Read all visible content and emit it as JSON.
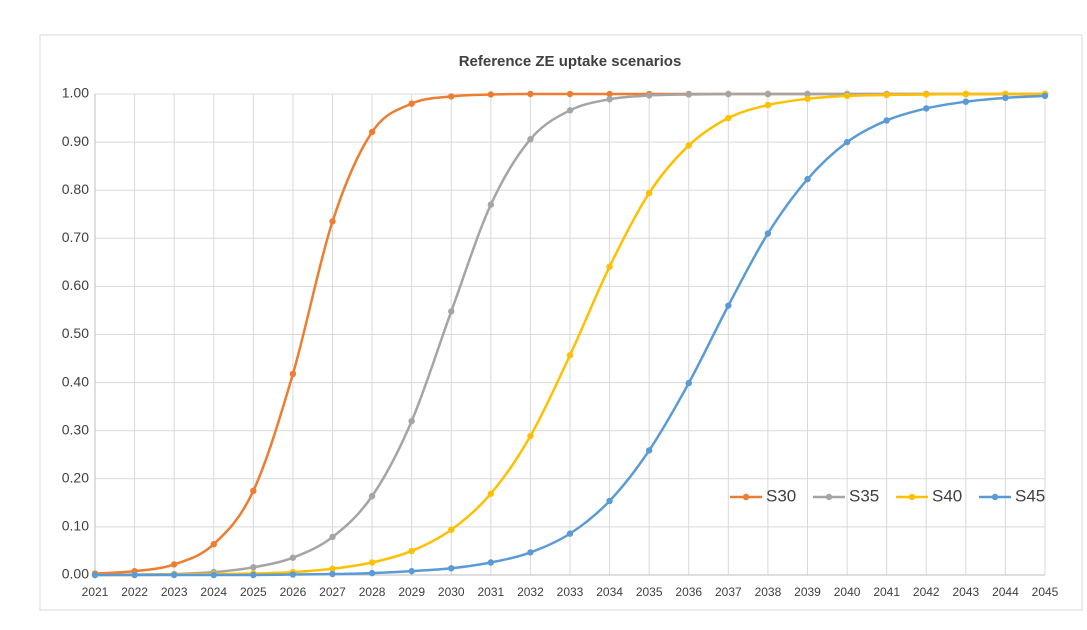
{
  "chart_data": {
    "type": "line",
    "title": "Reference ZE uptake scenarios",
    "categories": [
      "2021",
      "2022",
      "2023",
      "2024",
      "2025",
      "2026",
      "2027",
      "2028",
      "2029",
      "2030",
      "2031",
      "2032",
      "2033",
      "2034",
      "2035",
      "2036",
      "2037",
      "2038",
      "2039",
      "2040",
      "2041",
      "2042",
      "2043",
      "2044",
      "2045"
    ],
    "series": [
      {
        "name": "S30",
        "color": "#ed7d31",
        "values": [
          0.003,
          0.008,
          0.022,
          0.064,
          0.175,
          0.418,
          0.735,
          0.921,
          0.98,
          0.995,
          0.999,
          1,
          1,
          1,
          1,
          1,
          1,
          1,
          1,
          1,
          1,
          1,
          1,
          1,
          1
        ]
      },
      {
        "name": "S35",
        "color": "#a5a5a5",
        "values": [
          0,
          0.001,
          0.002,
          0.006,
          0.016,
          0.036,
          0.079,
          0.164,
          0.32,
          0.548,
          0.77,
          0.906,
          0.966,
          0.989,
          0.997,
          0.999,
          1,
          1,
          1,
          1,
          1,
          1,
          1,
          1,
          1
        ]
      },
      {
        "name": "S40",
        "color": "#ffc000",
        "values": [
          0,
          0,
          0.001,
          0.002,
          0.003,
          0.006,
          0.013,
          0.026,
          0.05,
          0.094,
          0.169,
          0.289,
          0.457,
          0.641,
          0.794,
          0.893,
          0.95,
          0.977,
          0.99,
          0.996,
          0.998,
          0.999,
          1,
          1,
          1
        ]
      },
      {
        "name": "S45",
        "color": "#5b9bd5",
        "values": [
          0,
          0,
          0,
          0,
          0,
          0.001,
          0.002,
          0.004,
          0.008,
          0.014,
          0.026,
          0.047,
          0.086,
          0.154,
          0.259,
          0.399,
          0.56,
          0.71,
          0.823,
          0.9,
          0.945,
          0.97,
          0.984,
          0.992,
          0.996
        ]
      }
    ],
    "ylim": [
      0,
      1
    ],
    "yticks": [
      {
        "value": 0,
        "label": "0.00"
      },
      {
        "value": 0.1,
        "label": "0.10"
      },
      {
        "value": 0.2,
        "label": "0.20"
      },
      {
        "value": 0.3,
        "label": "0.30"
      },
      {
        "value": 0.4,
        "label": "0.40"
      },
      {
        "value": 0.5,
        "label": "0.50"
      },
      {
        "value": 0.6,
        "label": "0.60"
      },
      {
        "value": 0.7,
        "label": "0.70"
      },
      {
        "value": 0.8,
        "label": "0.80"
      },
      {
        "value": 0.9,
        "label": "0.90"
      },
      {
        "value": 1,
        "label": "1.00"
      }
    ],
    "grid": true,
    "legend": "lower right"
  }
}
